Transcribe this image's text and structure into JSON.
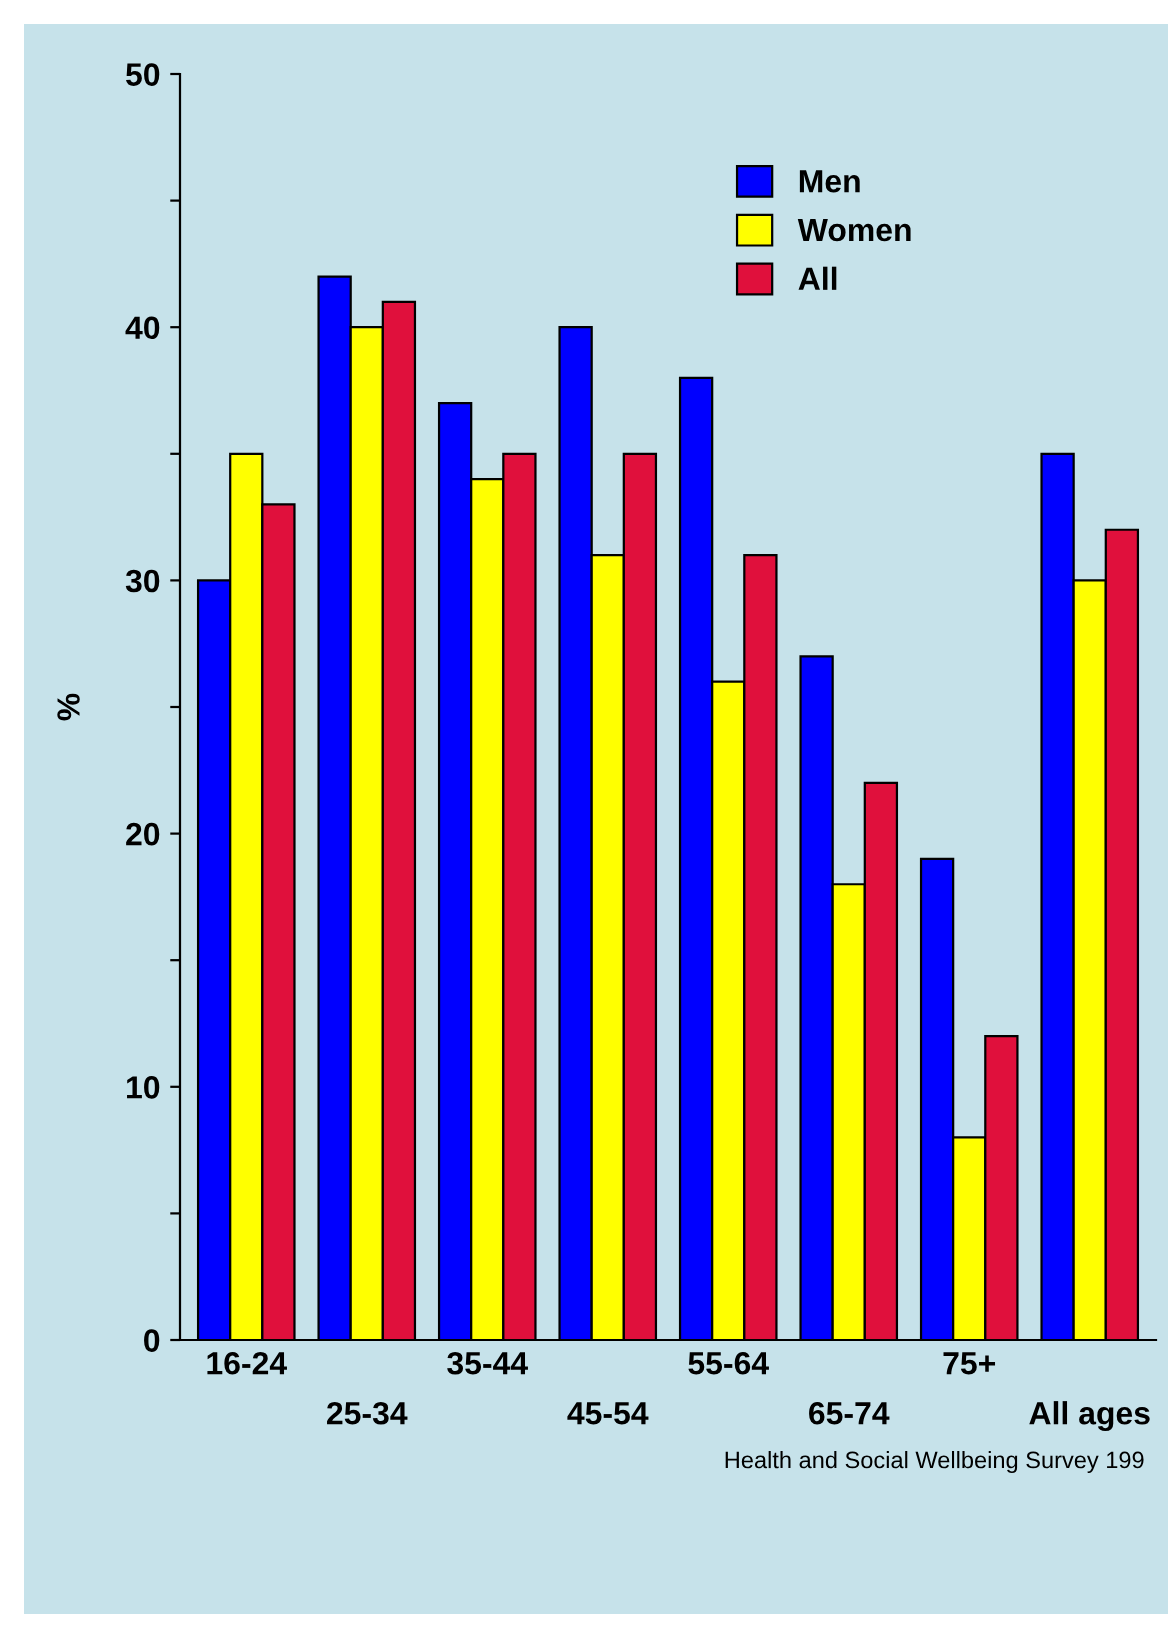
{
  "chart_data": {
    "type": "bar",
    "ylabel": "%",
    "categories": [
      "16-24",
      "25-34",
      "35-44",
      "45-54",
      "55-64",
      "65-74",
      "75+",
      "All ages"
    ],
    "series": [
      {
        "name": "Men",
        "color": "#0000ff",
        "values": [
          30,
          42,
          37,
          40,
          38,
          27,
          19,
          35
        ]
      },
      {
        "name": "Women",
        "color": "#ffff00",
        "values": [
          35,
          40,
          34,
          31,
          26,
          18,
          8,
          30
        ]
      },
      {
        "name": "All",
        "color": "#e0103c",
        "values": [
          33,
          41,
          35,
          35,
          31,
          22,
          12,
          32
        ]
      }
    ],
    "ylim": [
      0,
      50
    ],
    "yticks": [
      0,
      {
        "value": 5,
        "label": null
      },
      10,
      {
        "value": 15,
        "label": null
      },
      20,
      {
        "value": 25,
        "label": null
      },
      30,
      {
        "value": 35,
        "label": null
      },
      40,
      {
        "value": 45,
        "label": null
      },
      50
    ],
    "grid": false,
    "legend": "top right",
    "annotations": [
      "Health and Social Wellbeing Survey 199"
    ]
  }
}
